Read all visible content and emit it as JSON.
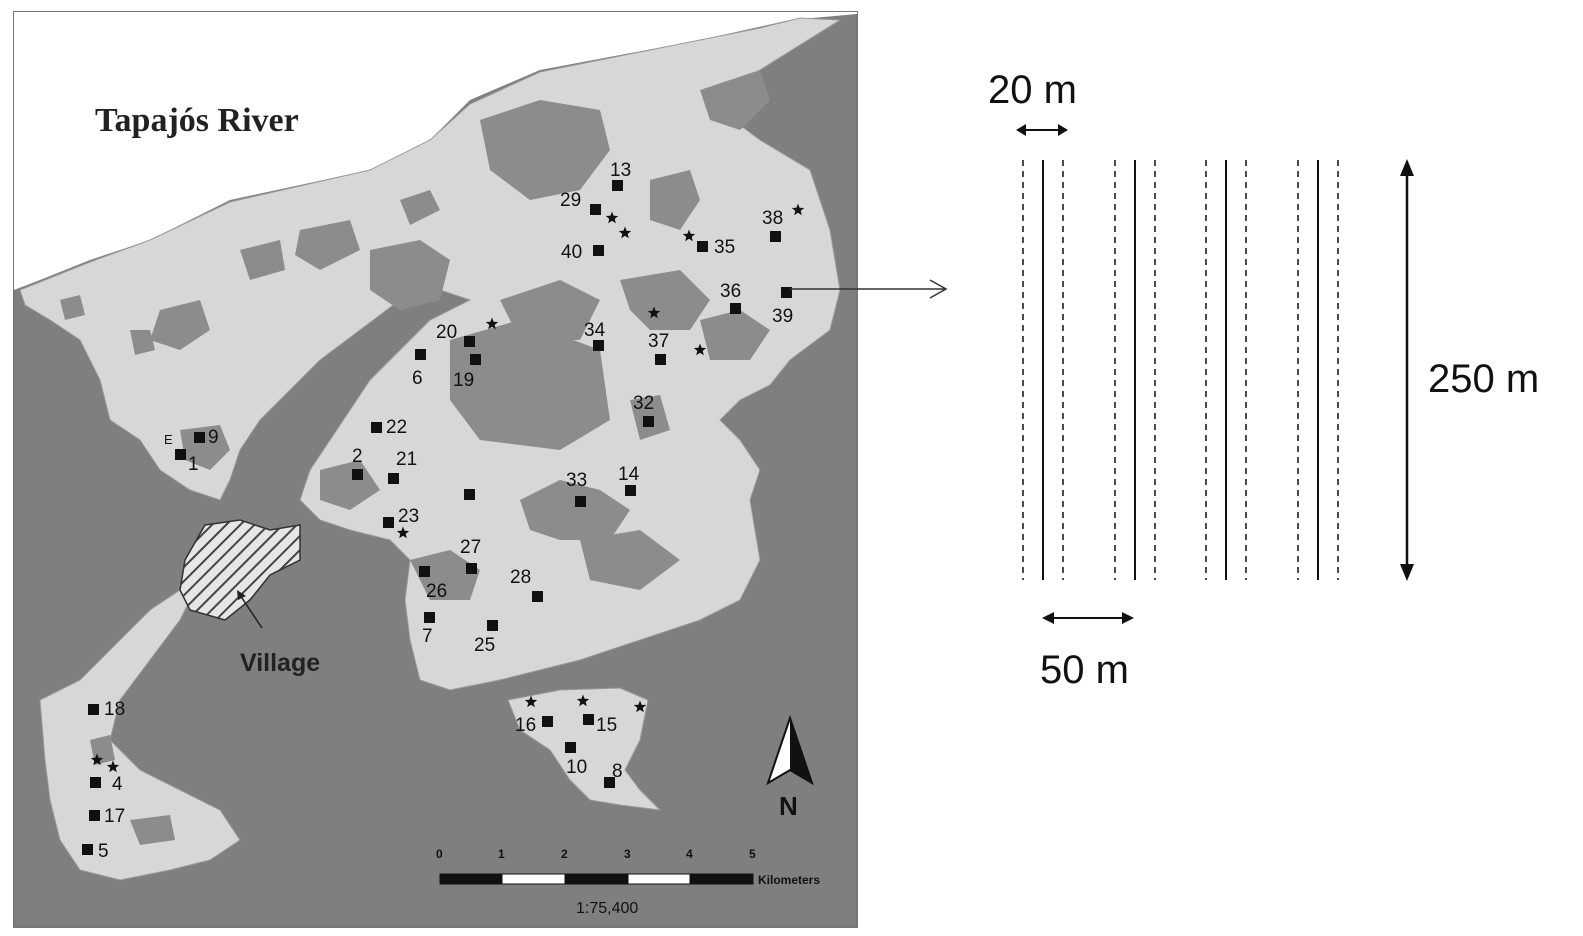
{
  "map": {
    "title": "Tapajós River",
    "village_label": "Village",
    "north_label": "N",
    "scale": {
      "ticks": [
        "0",
        "1",
        "2",
        "3",
        "4",
        "5"
      ],
      "unit": "Kilometers",
      "ratio": "1:75,400"
    },
    "colors": {
      "water": "#7f7f7f",
      "land": "#d7d7d7",
      "forest_patch": "#8c8c8c",
      "village_fill": "#6a6a6a"
    },
    "site_labels": [
      "1",
      "2",
      "4",
      "5",
      "6",
      "7",
      "8",
      "9",
      "10",
      "13",
      "14",
      "15",
      "16",
      "17",
      "18",
      "19",
      "20",
      "21",
      "22",
      "23",
      "25",
      "26",
      "27",
      "28",
      "29",
      "32",
      "33",
      "34",
      "35",
      "36",
      "37",
      "38",
      "39",
      "40",
      "E"
    ]
  },
  "transect_diagram": {
    "width_label": "20 m",
    "spacing_label": "50 m",
    "length_label": "250 m"
  }
}
